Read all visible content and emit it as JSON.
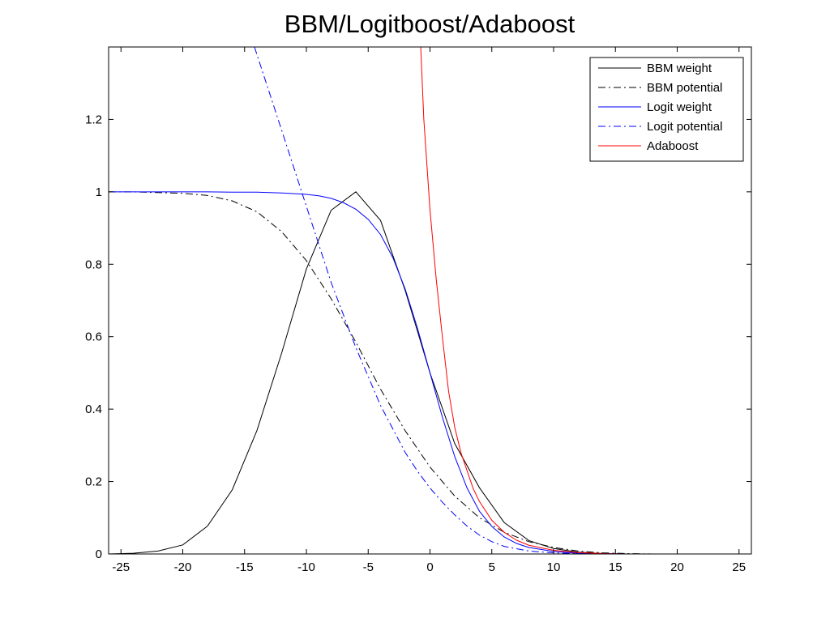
{
  "chart_data": {
    "type": "line",
    "title": "BBM/Logitboost/Adaboost",
    "xlabel": "",
    "ylabel": "",
    "xlim": [
      -26,
      26
    ],
    "ylim": [
      0,
      1.4
    ],
    "xticks": [
      -25,
      -20,
      -15,
      -10,
      -5,
      0,
      5,
      10,
      15,
      20,
      25
    ],
    "yticks": [
      0,
      0.2,
      0.4,
      0.6,
      0.8,
      1,
      1.2
    ],
    "xtick_labels": [
      "-25",
      "-20",
      "-15",
      "-10",
      "-5",
      "0",
      "5",
      "10",
      "15",
      "20",
      "25"
    ],
    "ytick_labels": [
      "0",
      "0.2",
      "0.4",
      "0.6",
      "0.8",
      "1",
      "1.2"
    ],
    "grid": false,
    "legend_position": "top-right",
    "series": [
      {
        "name": "BBM weight",
        "color": "#000000",
        "dash": "solid",
        "x": [
          -26,
          -24,
          -22,
          -20,
          -18,
          -16,
          -14,
          -12,
          -10,
          -8,
          -6,
          -4,
          -2,
          0,
          2,
          4,
          6,
          8,
          10,
          12,
          14,
          16,
          18,
          20,
          22,
          24,
          26
        ],
        "y": [
          0.0,
          0.002,
          0.008,
          0.025,
          0.077,
          0.177,
          0.341,
          0.555,
          0.787,
          0.949,
          1.0,
          0.921,
          0.727,
          0.5,
          0.305,
          0.183,
          0.087,
          0.037,
          0.015,
          0.005,
          0.001,
          0.0,
          0.0,
          0.0,
          0.0,
          0.0,
          0.0
        ]
      },
      {
        "name": "BBM potential",
        "color": "#000000",
        "dash": "dashdot",
        "x": [
          -26,
          -24,
          -22,
          -20,
          -18,
          -16,
          -14,
          -12,
          -10,
          -8,
          -6,
          -4,
          -2,
          0,
          2,
          4,
          6,
          8,
          10,
          12,
          14,
          16,
          18,
          20,
          22,
          24,
          26
        ],
        "y": [
          1.0,
          1.0,
          0.998,
          0.996,
          0.99,
          0.975,
          0.945,
          0.89,
          0.81,
          0.705,
          0.585,
          0.455,
          0.34,
          0.24,
          0.16,
          0.1,
          0.06,
          0.034,
          0.018,
          0.008,
          0.003,
          0.001,
          0.0,
          0.0,
          0.0,
          0.0,
          0.0
        ]
      },
      {
        "name": "Logit weight",
        "color": "#0000ff",
        "dash": "solid",
        "x": [
          -26,
          -24,
          -22,
          -20,
          -18,
          -16,
          -14,
          -12,
          -10,
          -9,
          -8,
          -7,
          -6,
          -5,
          -4,
          -3,
          -2,
          -1,
          0,
          1,
          2,
          3,
          4,
          5,
          6,
          7,
          8,
          10,
          12,
          14,
          16,
          20,
          26
        ],
        "y": [
          1.0,
          1.0,
          1.0,
          1.0,
          1.0,
          0.999,
          0.999,
          0.997,
          0.993,
          0.989,
          0.982,
          0.97,
          0.952,
          0.924,
          0.882,
          0.818,
          0.731,
          0.622,
          0.5,
          0.378,
          0.269,
          0.182,
          0.118,
          0.076,
          0.047,
          0.029,
          0.018,
          0.007,
          0.002,
          0.001,
          0.0,
          0.0,
          0.0
        ]
      },
      {
        "name": "Logit potential",
        "color": "#0000ff",
        "dash": "dashdot",
        "x": [
          -14.2,
          -12,
          -10,
          -8,
          -6,
          -4,
          -2,
          -1,
          0,
          1,
          2,
          3,
          4,
          5,
          6,
          8,
          10,
          12,
          14,
          16,
          20,
          26
        ],
        "y": [
          1.4,
          1.17,
          0.96,
          0.75,
          0.57,
          0.41,
          0.28,
          0.228,
          0.182,
          0.143,
          0.108,
          0.077,
          0.052,
          0.034,
          0.021,
          0.008,
          0.003,
          0.001,
          0.0,
          0.0,
          0.0,
          0.0
        ]
      },
      {
        "name": "Adaboost",
        "color": "#ff0000",
        "dash": "solid",
        "x": [
          -0.75,
          -0.5,
          0,
          0.5,
          1,
          1.5,
          2,
          2.5,
          3,
          3.5,
          4,
          5,
          6,
          7,
          8,
          10,
          12,
          14,
          16,
          20,
          26
        ],
        "y": [
          1.4,
          1.2,
          0.95,
          0.76,
          0.6,
          0.45,
          0.35,
          0.28,
          0.23,
          0.18,
          0.145,
          0.093,
          0.06,
          0.038,
          0.024,
          0.01,
          0.004,
          0.001,
          0.0,
          0.0,
          0.0
        ]
      }
    ]
  }
}
